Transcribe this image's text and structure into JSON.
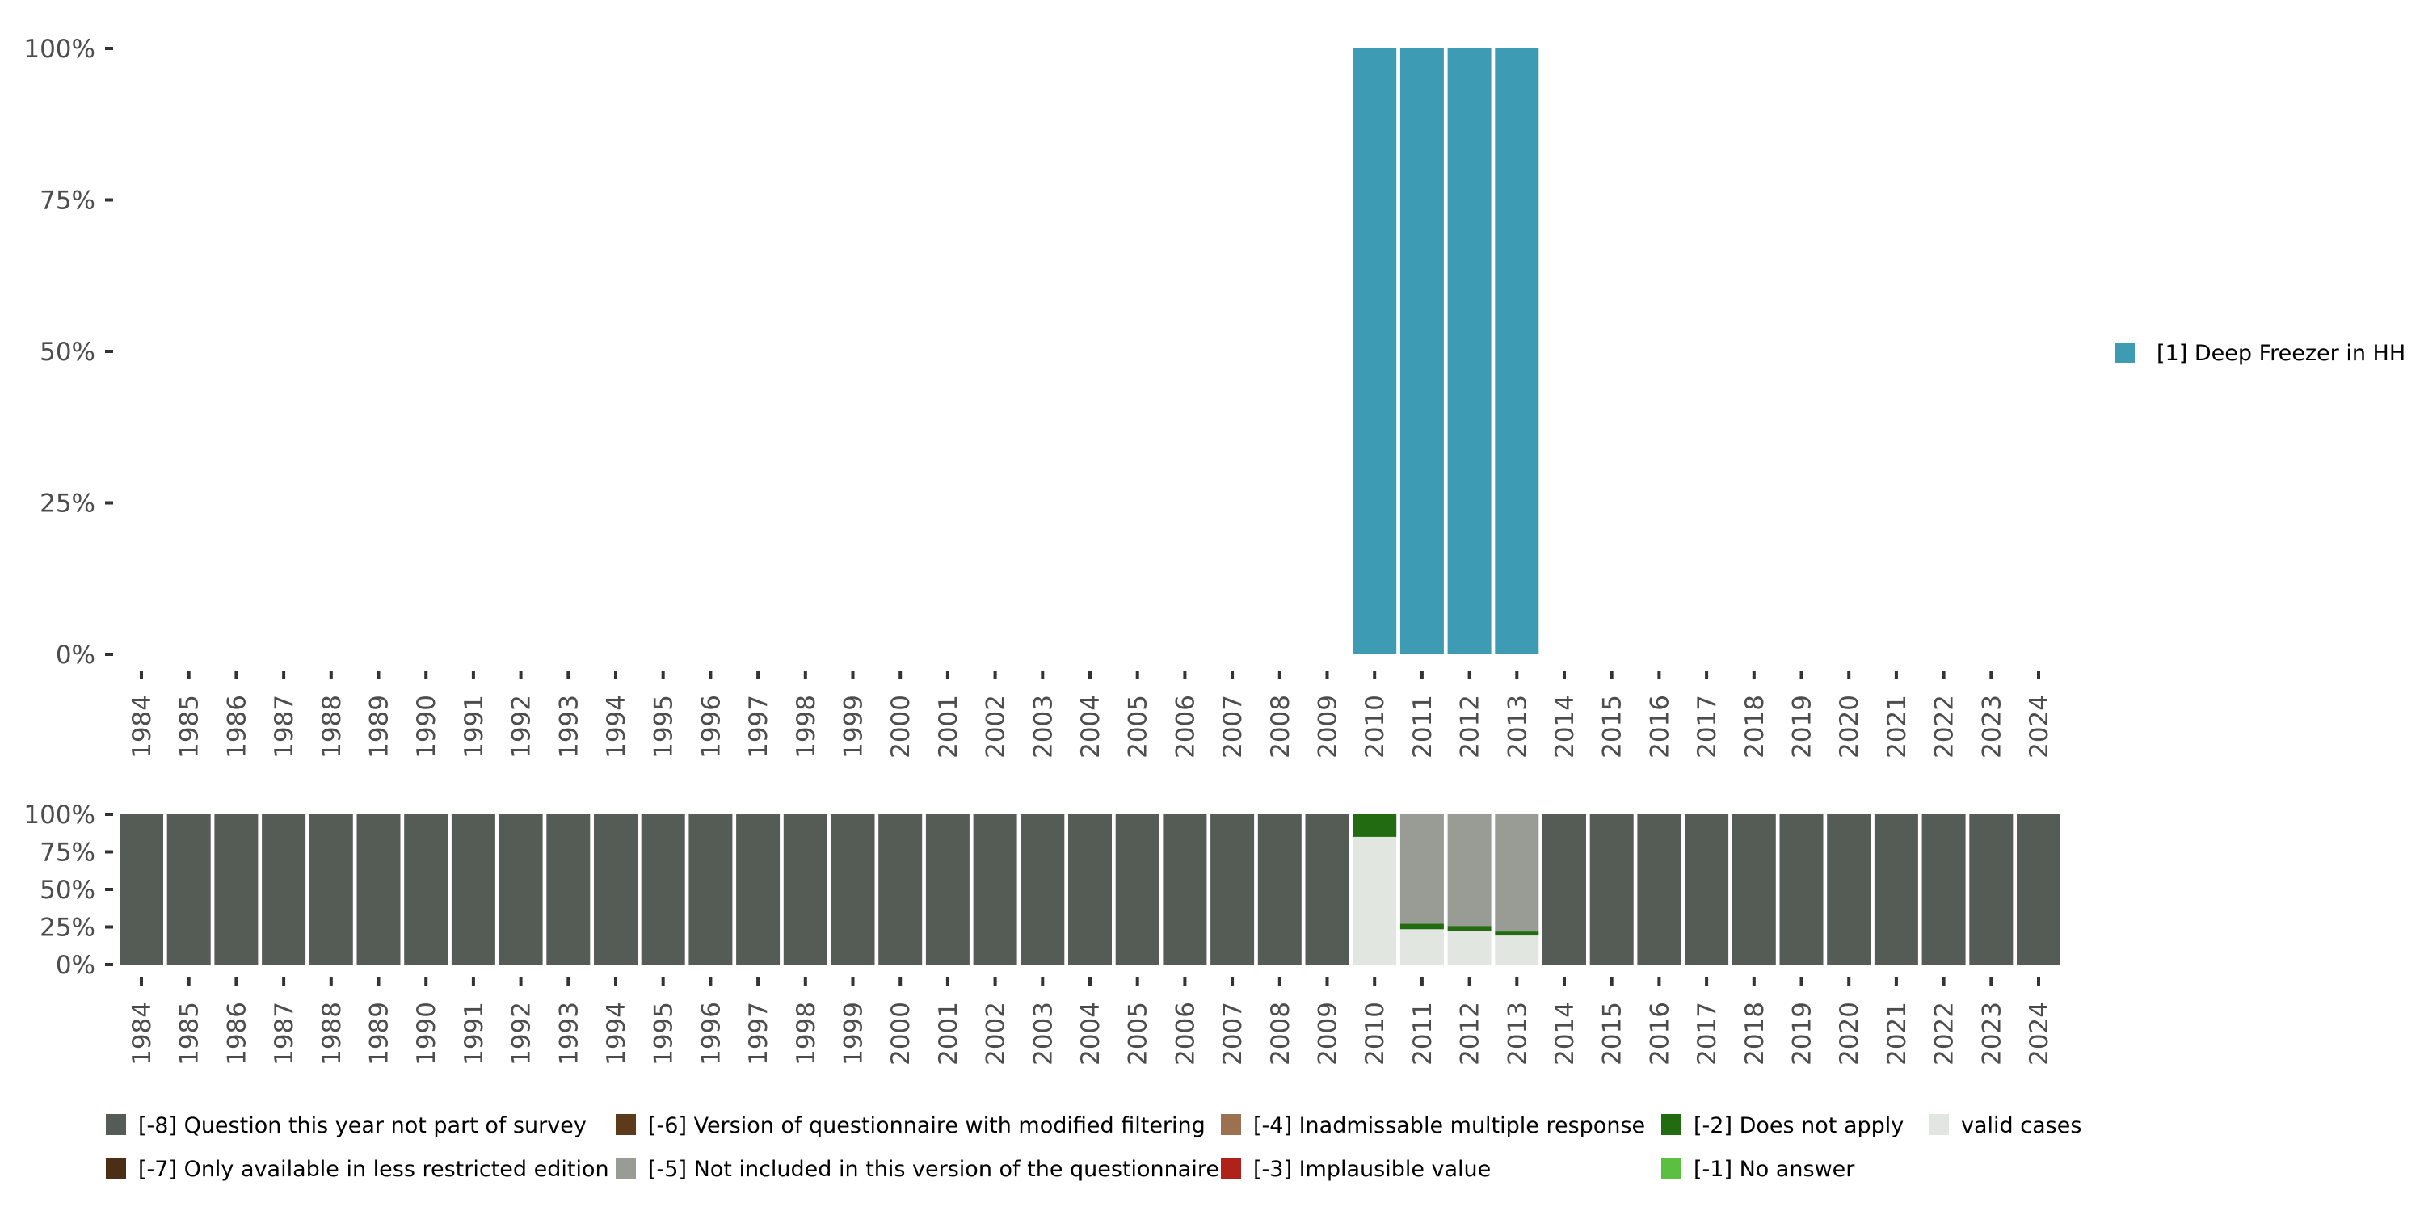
{
  "chart_data": [
    {
      "type": "bar",
      "stacked": true,
      "title": "",
      "xlabel": "",
      "ylabel": "",
      "ylim": [
        0,
        100
      ],
      "y_ticks": [
        "0%",
        "25%",
        "50%",
        "75%",
        "100%"
      ],
      "categories": [
        "1984",
        "1985",
        "1986",
        "1987",
        "1988",
        "1989",
        "1990",
        "1991",
        "1992",
        "1993",
        "1994",
        "1995",
        "1996",
        "1997",
        "1998",
        "1999",
        "2000",
        "2001",
        "2002",
        "2003",
        "2004",
        "2005",
        "2006",
        "2007",
        "2008",
        "2009",
        "2010",
        "2011",
        "2012",
        "2013",
        "2014",
        "2015",
        "2016",
        "2017",
        "2018",
        "2019",
        "2020",
        "2021",
        "2022",
        "2023",
        "2024"
      ],
      "series": [
        {
          "name": "[1] Deep Freezer in HH",
          "color": "#3d9bb3",
          "values": {
            "2010": 100,
            "2011": 100,
            "2012": 100,
            "2013": 100
          }
        }
      ],
      "legend_position": "right"
    },
    {
      "type": "bar",
      "stacked": true,
      "ylim": [
        0,
        100
      ],
      "y_ticks": [
        "0%",
        "25%",
        "50%",
        "75%",
        "100%"
      ],
      "categories": [
        "1984",
        "1985",
        "1986",
        "1987",
        "1988",
        "1989",
        "1990",
        "1991",
        "1992",
        "1993",
        "1994",
        "1995",
        "1996",
        "1997",
        "1998",
        "1999",
        "2000",
        "2001",
        "2002",
        "2003",
        "2004",
        "2005",
        "2006",
        "2007",
        "2008",
        "2009",
        "2010",
        "2011",
        "2012",
        "2013",
        "2014",
        "2015",
        "2016",
        "2017",
        "2018",
        "2019",
        "2020",
        "2021",
        "2022",
        "2023",
        "2024"
      ],
      "series": [
        {
          "name": "valid cases",
          "color": "#e1e6e1",
          "values": {
            "2010": 85,
            "2011": 23.5,
            "2012": 22.5,
            "2013": 19.3
          }
        },
        {
          "name": "[-2] Does not apply",
          "color": "#226b10",
          "values": {
            "2010": 15,
            "2011": 3.7,
            "2012": 3.2,
            "2013": 2.7
          }
        },
        {
          "name": "[-5] Not included in this version of the questionnaire",
          "color": "#989c95",
          "values": {
            "2011": 72.8,
            "2012": 74.3,
            "2013": 78
          }
        },
        {
          "name": "[-8] Question this year not part of survey",
          "color": "#555b55",
          "values": "100 for all years except 2010-2013"
        }
      ],
      "legend_position": "bottom",
      "legend": [
        {
          "label": "[-8] Question this year not part of survey",
          "color": "#555b55"
        },
        {
          "label": "[-7] Only available in less restricted edition",
          "color": "#4a2e15"
        },
        {
          "label": "[-6] Version of questionnaire with modified filtering",
          "color": "#5c3a1a"
        },
        {
          "label": "[-5] Not included in this version of the questionnaire",
          "color": "#989c95"
        },
        {
          "label": "[-4] Inadmissable multiple response",
          "color": "#9b7150"
        },
        {
          "label": "[-3] Implausible value",
          "color": "#b0211a"
        },
        {
          "label": "[-2] Does not apply",
          "color": "#226b10"
        },
        {
          "label": "[-1] No answer",
          "color": "#5bbf3f"
        },
        {
          "label": "valid cases",
          "color": "#e1e6e1"
        }
      ]
    }
  ]
}
